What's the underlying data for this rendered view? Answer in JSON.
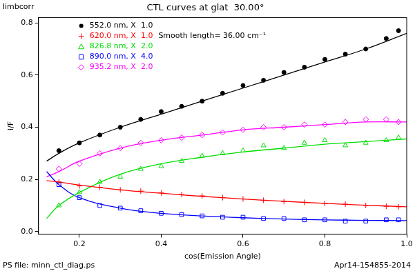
{
  "chart_data": {
    "type": "scatter",
    "corner_label": "limbcorr",
    "title": "CTL curves at glat  30.00°",
    "xlabel": "cos(Emission Angle)",
    "ylabel": "I/F",
    "annotation": "Smooth length= 36.00 cm⁻¹",
    "footer_left": "PS file: minn_ctl_diag.ps",
    "footer_right": "Apr14-154855-2014",
    "xlim": [
      0.1,
      1.0
    ],
    "ylim": [
      -0.01,
      0.82
    ],
    "xticks": [
      0.2,
      0.4,
      0.6,
      0.8,
      {
        "value": 1.0,
        "label": "1.0"
      }
    ],
    "yticks": [
      {
        "value": 0,
        "label": "0.0"
      },
      0.2,
      0.4,
      0.6,
      0.8
    ],
    "grid": false,
    "legend": "upper left",
    "series": [
      {
        "name": "552.0 nm, X  1.0",
        "color": "#000000",
        "marker": "circle",
        "x": [
          0.15,
          0.2,
          0.25,
          0.3,
          0.35,
          0.4,
          0.45,
          0.5,
          0.55,
          0.6,
          0.65,
          0.7,
          0.75,
          0.8,
          0.85,
          0.9,
          0.95,
          0.98
        ],
        "values": [
          0.31,
          0.34,
          0.37,
          0.4,
          0.43,
          0.46,
          0.48,
          0.5,
          0.53,
          0.56,
          0.58,
          0.61,
          0.63,
          0.66,
          0.68,
          0.7,
          0.74,
          0.77
        ],
        "fit": {
          "x": [
            0.12,
            0.15,
            0.2,
            0.3,
            0.4,
            0.5,
            0.6,
            0.7,
            0.8,
            0.9,
            1.0
          ],
          "values": [
            0.27,
            0.3,
            0.34,
            0.4,
            0.45,
            0.5,
            0.55,
            0.6,
            0.65,
            0.7,
            0.76
          ]
        }
      },
      {
        "name": "620.0 nm, X  1.0",
        "color": "#ff0000",
        "marker": "plus",
        "x": [
          0.15,
          0.2,
          0.25,
          0.3,
          0.35,
          0.4,
          0.45,
          0.5,
          0.55,
          0.6,
          0.65,
          0.7,
          0.75,
          0.8,
          0.85,
          0.9,
          0.95,
          0.98
        ],
        "values": [
          0.19,
          0.175,
          0.17,
          0.16,
          0.155,
          0.148,
          0.142,
          0.137,
          0.13,
          0.125,
          0.12,
          0.115,
          0.112,
          0.108,
          0.105,
          0.1,
          0.097,
          0.095
        ],
        "fit": {
          "x": [
            0.12,
            0.15,
            0.2,
            0.3,
            0.4,
            0.5,
            0.6,
            0.7,
            0.8,
            0.9,
            1.0
          ],
          "values": [
            0.195,
            0.19,
            0.178,
            0.16,
            0.147,
            0.135,
            0.125,
            0.116,
            0.108,
            0.101,
            0.095
          ]
        }
      },
      {
        "name": "826.8 nm, X  2.0",
        "color": "#00dd00",
        "marker": "triangle",
        "x": [
          0.15,
          0.2,
          0.25,
          0.3,
          0.35,
          0.4,
          0.45,
          0.5,
          0.55,
          0.6,
          0.65,
          0.7,
          0.75,
          0.8,
          0.85,
          0.9,
          0.95,
          0.98
        ],
        "values": [
          0.1,
          0.15,
          0.19,
          0.21,
          0.24,
          0.25,
          0.27,
          0.29,
          0.3,
          0.31,
          0.33,
          0.32,
          0.34,
          0.35,
          0.33,
          0.34,
          0.35,
          0.36
        ],
        "fit": {
          "x": [
            0.12,
            0.15,
            0.2,
            0.3,
            0.4,
            0.5,
            0.6,
            0.7,
            0.8,
            0.9,
            1.0
          ],
          "values": [
            0.05,
            0.1,
            0.15,
            0.22,
            0.26,
            0.285,
            0.305,
            0.32,
            0.335,
            0.345,
            0.355
          ]
        }
      },
      {
        "name": "890.0 nm, X  4.0",
        "color": "#0000ff",
        "marker": "square",
        "x": [
          0.15,
          0.2,
          0.25,
          0.3,
          0.35,
          0.4,
          0.45,
          0.5,
          0.55,
          0.6,
          0.65,
          0.7,
          0.75,
          0.8,
          0.85,
          0.9,
          0.95,
          0.98
        ],
        "values": [
          0.18,
          0.13,
          0.1,
          0.09,
          0.08,
          0.07,
          0.065,
          0.06,
          0.055,
          0.055,
          0.05,
          0.05,
          0.045,
          0.045,
          0.04,
          0.04,
          0.045,
          0.045
        ],
        "fit": {
          "x": [
            0.12,
            0.15,
            0.2,
            0.3,
            0.4,
            0.5,
            0.6,
            0.7,
            0.8,
            0.9,
            1.0
          ],
          "values": [
            0.23,
            0.18,
            0.13,
            0.09,
            0.07,
            0.06,
            0.053,
            0.048,
            0.045,
            0.043,
            0.042
          ]
        }
      },
      {
        "name": "935.2 nm, X  2.0",
        "color": "#ff00ff",
        "marker": "diamond",
        "x": [
          0.15,
          0.2,
          0.25,
          0.3,
          0.35,
          0.4,
          0.45,
          0.5,
          0.55,
          0.6,
          0.65,
          0.7,
          0.75,
          0.8,
          0.85,
          0.9,
          0.95,
          0.98
        ],
        "values": [
          0.24,
          0.26,
          0.3,
          0.32,
          0.34,
          0.35,
          0.36,
          0.37,
          0.38,
          0.39,
          0.4,
          0.4,
          0.41,
          0.41,
          0.42,
          0.43,
          0.43,
          0.42
        ],
        "fit": {
          "x": [
            0.12,
            0.15,
            0.2,
            0.3,
            0.4,
            0.5,
            0.6,
            0.7,
            0.8,
            0.9,
            1.0
          ],
          "values": [
            0.21,
            0.23,
            0.27,
            0.32,
            0.35,
            0.37,
            0.39,
            0.4,
            0.41,
            0.42,
            0.42
          ]
        }
      }
    ]
  }
}
